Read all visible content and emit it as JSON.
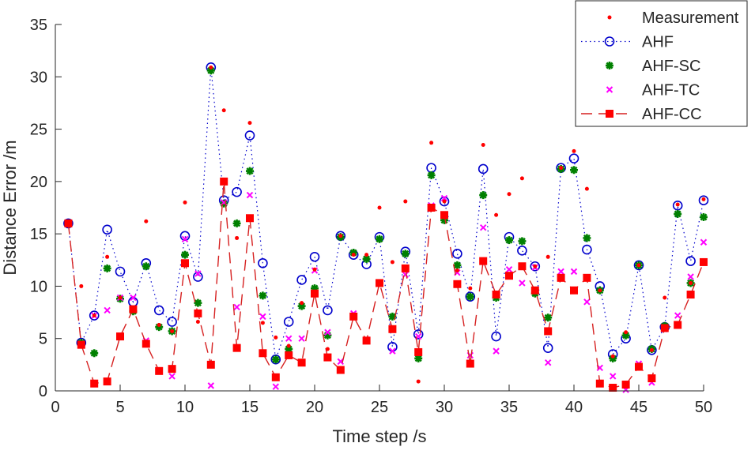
{
  "chart_data": {
    "type": "line",
    "title": "",
    "xlabel": "Time step /s",
    "ylabel": "Distance Error /m",
    "xlim": [
      0,
      50
    ],
    "ylim": [
      0,
      35
    ],
    "xticks": [
      0,
      5,
      10,
      15,
      20,
      25,
      30,
      35,
      40,
      45,
      50
    ],
    "yticks": [
      0,
      5,
      10,
      15,
      20,
      25,
      30,
      35
    ],
    "grid": false,
    "legend_position": "top-right",
    "x": [
      1,
      2,
      3,
      4,
      5,
      6,
      7,
      8,
      9,
      10,
      11,
      12,
      13,
      14,
      15,
      16,
      17,
      18,
      19,
      20,
      21,
      22,
      23,
      24,
      25,
      26,
      27,
      28,
      29,
      30,
      31,
      32,
      33,
      34,
      35,
      36,
      37,
      38,
      39,
      40,
      41,
      42,
      43,
      44,
      45,
      46,
      47,
      48,
      49,
      50
    ],
    "series": [
      {
        "name": "Measurement",
        "style": "dot",
        "color": "#ff0000",
        "values": [
          16,
          10,
          7.2,
          12.8,
          8.9,
          7.8,
          16.2,
          6.3,
          5.7,
          18,
          6.6,
          30.9,
          26.8,
          14.6,
          25.6,
          6.5,
          5.1,
          4.3,
          8.4,
          11.6,
          4.0,
          14.8,
          13.0,
          13.0,
          17.5,
          12.3,
          18.1,
          0.9,
          23.7,
          18.1,
          11.5,
          9.8,
          23.5,
          16.8,
          18.8,
          20.3,
          11.9,
          12.8,
          21.3,
          22.9,
          19.3,
          9.6,
          3.3,
          5.6,
          12.0,
          3.9,
          8.9,
          17.8,
          10.3,
          18.3
        ]
      },
      {
        "name": "AHF",
        "style": "dotted-circle",
        "color": "#0000cc",
        "values": [
          16,
          4.6,
          7.2,
          15.4,
          11.4,
          8.5,
          12.2,
          7.7,
          6.6,
          14.8,
          10.9,
          30.9,
          18.2,
          19.0,
          24.4,
          12.2,
          3.0,
          6.6,
          10.6,
          12.8,
          7.7,
          14.8,
          13.0,
          12.1,
          14.7,
          4.2,
          13.3,
          5.4,
          21.3,
          18.1,
          13.1,
          9.0,
          21.2,
          5.2,
          14.7,
          13.4,
          11.9,
          4.1,
          21.3,
          22.2,
          13.5,
          10.0,
          3.5,
          5.0,
          12.0,
          3.9,
          6.1,
          17.7,
          12.4,
          18.2
        ]
      },
      {
        "name": "AHF-SC",
        "style": "asterisk",
        "color": "#008000",
        "values": [
          16,
          4.6,
          3.6,
          11.7,
          8.8,
          7.6,
          11.9,
          6.1,
          5.7,
          13.0,
          8.4,
          30.6,
          17.9,
          16.0,
          21.0,
          9.1,
          3.0,
          4.0,
          8.1,
          9.8,
          5.3,
          14.7,
          13.2,
          12.6,
          14.5,
          7.1,
          13.1,
          3.1,
          20.6,
          16.3,
          12.0,
          9.0,
          18.7,
          8.9,
          14.4,
          14.3,
          9.3,
          7.0,
          21.2,
          21.1,
          14.6,
          9.6,
          3.1,
          5.3,
          12.0,
          4.0,
          6.2,
          16.9,
          10.3,
          16.6
        ]
      },
      {
        "name": "AHF-TC",
        "style": "cross",
        "color": "#ff00ff",
        "values": [
          16,
          4.5,
          7.2,
          7.7,
          8.9,
          8.9,
          4.8,
          1.9,
          1.4,
          14.5,
          11.2,
          0.5,
          18.0,
          8.0,
          18.7,
          7.1,
          0.4,
          5.0,
          5.0,
          11.5,
          5.6,
          2.8,
          7.4,
          4.9,
          10.3,
          3.8,
          11.1,
          5.2,
          17.7,
          18.4,
          11.3,
          3.4,
          15.6,
          3.8,
          11.6,
          10.3,
          11.8,
          2.7,
          11.4,
          11.4,
          8.5,
          2.2,
          1.4,
          0.1,
          2.6,
          0.8,
          5.9,
          7.2,
          10.9,
          14.2
        ]
      },
      {
        "name": "AHF-CC",
        "style": "dashed-square",
        "color": "#ff0000",
        "values": [
          16,
          4.4,
          0.7,
          0.9,
          5.2,
          7.8,
          4.5,
          1.9,
          2.1,
          12.2,
          7.4,
          2.5,
          20.0,
          4.1,
          16.5,
          3.6,
          1.3,
          3.4,
          2.7,
          9.3,
          3.2,
          2.0,
          7.1,
          4.8,
          10.3,
          5.9,
          11.7,
          3.7,
          17.5,
          16.8,
          10.2,
          2.6,
          12.4,
          9.2,
          11.0,
          11.9,
          9.6,
          5.7,
          10.8,
          9.6,
          10.8,
          0.7,
          0.3,
          0.6,
          2.3,
          1.2,
          6.0,
          6.3,
          9.2,
          12.3
        ]
      }
    ]
  }
}
